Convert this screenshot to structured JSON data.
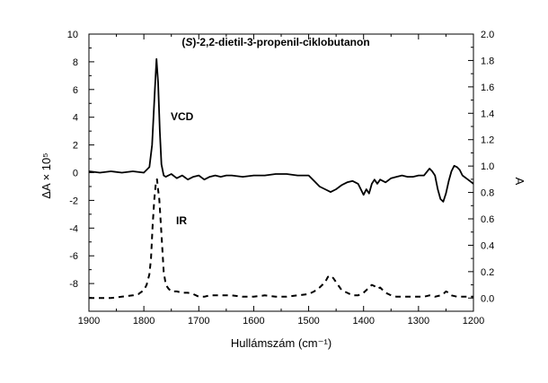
{
  "chart_data": {
    "type": "line",
    "title_italic": "S",
    "title_rest": "-2,2-dietil-3-propenil-ciklobutanon",
    "xlabel": "Hullámszám (cm⁻¹)",
    "ylabel_left": "ΔA × 10⁵",
    "ylabel_right": "A",
    "xlim": [
      1900,
      1200
    ],
    "ylim_left": [
      -10,
      10
    ],
    "ylim_right": [
      -0.1,
      2.0
    ],
    "x_ticks": [
      1900,
      1800,
      1700,
      1600,
      1500,
      1400,
      1300,
      1200
    ],
    "y_left_ticks": [
      10,
      8,
      6,
      4,
      2,
      0,
      -2,
      -4,
      -6,
      -8
    ],
    "y_right_ticks": [
      "2.0",
      "1.8",
      "1.6",
      "1.4",
      "1.2",
      "1.0",
      "0.8",
      "0.6",
      "0.4",
      "0.2",
      "0.0"
    ],
    "grid": false,
    "annotations": [
      "VCD",
      "IR"
    ],
    "series": [
      {
        "name": "VCD",
        "style": "solid",
        "axis": "left",
        "x": [
          1900,
          1880,
          1860,
          1840,
          1820,
          1800,
          1790,
          1785,
          1780,
          1777,
          1774,
          1771,
          1768,
          1764,
          1760,
          1750,
          1740,
          1730,
          1720,
          1710,
          1700,
          1690,
          1680,
          1670,
          1660,
          1650,
          1640,
          1620,
          1600,
          1580,
          1560,
          1540,
          1520,
          1500,
          1490,
          1480,
          1470,
          1460,
          1450,
          1440,
          1430,
          1420,
          1410,
          1400,
          1395,
          1390,
          1385,
          1380,
          1375,
          1370,
          1360,
          1350,
          1340,
          1330,
          1320,
          1310,
          1300,
          1290,
          1280,
          1275,
          1270,
          1265,
          1260,
          1255,
          1250,
          1245,
          1240,
          1235,
          1230,
          1225,
          1220,
          1210,
          1200
        ],
        "values": [
          0.1,
          0.0,
          0.1,
          0.0,
          0.1,
          0.0,
          0.4,
          2.0,
          6.0,
          8.2,
          6.5,
          3.0,
          0.6,
          -0.2,
          -0.3,
          -0.1,
          -0.4,
          -0.2,
          -0.5,
          -0.3,
          -0.2,
          -0.5,
          -0.3,
          -0.2,
          -0.3,
          -0.2,
          -0.2,
          -0.3,
          -0.2,
          -0.2,
          -0.1,
          -0.1,
          -0.2,
          -0.2,
          -0.6,
          -1.0,
          -1.2,
          -1.4,
          -1.2,
          -0.9,
          -0.7,
          -0.6,
          -0.8,
          -1.6,
          -1.2,
          -1.5,
          -0.8,
          -0.5,
          -0.8,
          -0.5,
          -0.7,
          -0.4,
          -0.3,
          -0.2,
          -0.3,
          -0.3,
          -0.2,
          -0.2,
          0.3,
          0.1,
          -0.2,
          -1.2,
          -1.9,
          -2.1,
          -1.5,
          -0.6,
          0.1,
          0.5,
          0.4,
          0.2,
          -0.2,
          -0.5,
          -0.8
        ]
      },
      {
        "name": "IR",
        "style": "dashed",
        "axis": "right",
        "x": [
          1900,
          1880,
          1860,
          1840,
          1820,
          1810,
          1800,
          1795,
          1790,
          1787,
          1784,
          1781,
          1778,
          1776,
          1774,
          1772,
          1770,
          1767,
          1764,
          1760,
          1755,
          1750,
          1740,
          1730,
          1720,
          1710,
          1700,
          1690,
          1680,
          1660,
          1640,
          1620,
          1600,
          1580,
          1560,
          1540,
          1520,
          1500,
          1490,
          1480,
          1470,
          1465,
          1460,
          1455,
          1450,
          1445,
          1440,
          1430,
          1420,
          1410,
          1400,
          1395,
          1390,
          1385,
          1380,
          1375,
          1370,
          1365,
          1360,
          1350,
          1340,
          1320,
          1300,
          1290,
          1280,
          1270,
          1260,
          1255,
          1250,
          1245,
          1240,
          1230,
          1220,
          1210,
          1200
        ],
        "values": [
          0.0,
          0.0,
          0.0,
          0.01,
          0.02,
          0.03,
          0.06,
          0.1,
          0.18,
          0.3,
          0.55,
          0.75,
          0.88,
          0.9,
          0.82,
          0.75,
          0.62,
          0.42,
          0.2,
          0.1,
          0.07,
          0.05,
          0.05,
          0.04,
          0.04,
          0.03,
          0.01,
          0.01,
          0.02,
          0.02,
          0.02,
          0.01,
          0.01,
          0.02,
          0.01,
          0.01,
          0.02,
          0.03,
          0.05,
          0.08,
          0.12,
          0.16,
          0.17,
          0.15,
          0.12,
          0.09,
          0.06,
          0.04,
          0.02,
          0.02,
          0.04,
          0.06,
          0.08,
          0.1,
          0.09,
          0.07,
          0.08,
          0.06,
          0.04,
          0.02,
          0.01,
          0.01,
          0.01,
          0.01,
          0.02,
          0.01,
          0.02,
          0.03,
          0.05,
          0.04,
          0.02,
          0.01,
          0.01,
          0.01,
          0.01
        ]
      }
    ]
  }
}
